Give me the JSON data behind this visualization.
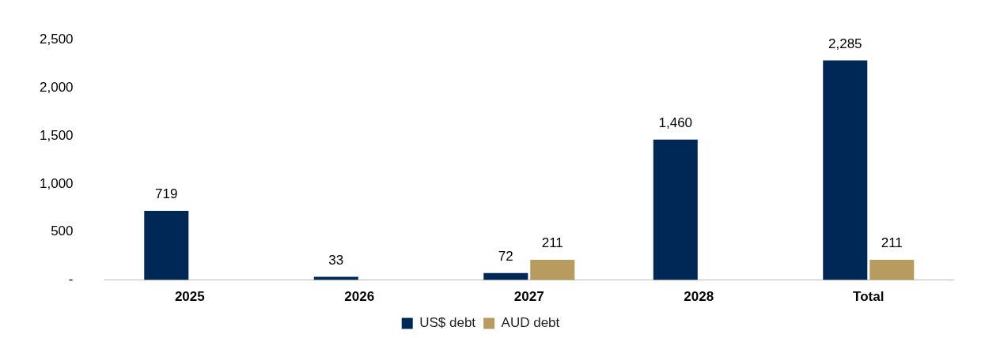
{
  "chart_data": {
    "type": "bar",
    "categories": [
      "2025",
      "2026",
      "2027",
      "2028",
      "Total"
    ],
    "series": [
      {
        "name": "US$ debt",
        "color": "#002856",
        "values": [
          719,
          33,
          72,
          1460,
          2285
        ],
        "value_labels": [
          "719",
          "33",
          "72",
          "1,460",
          "2,285"
        ]
      },
      {
        "name": "AUD debt",
        "color": "#b89b5e",
        "values": [
          null,
          null,
          211,
          null,
          211
        ],
        "value_labels": [
          null,
          null,
          "211",
          null,
          "211"
        ]
      }
    ],
    "ylim": [
      0,
      2500
    ],
    "yticks": [
      {
        "value": 0,
        "label": "-"
      },
      {
        "value": 500,
        "label": "500"
      },
      {
        "value": 1000,
        "label": "1,000"
      },
      {
        "value": 1500,
        "label": "1,500"
      },
      {
        "value": 2000,
        "label": "2,000"
      },
      {
        "value": 2500,
        "label": "2,500"
      }
    ],
    "grid": false,
    "legend": "bottom"
  }
}
